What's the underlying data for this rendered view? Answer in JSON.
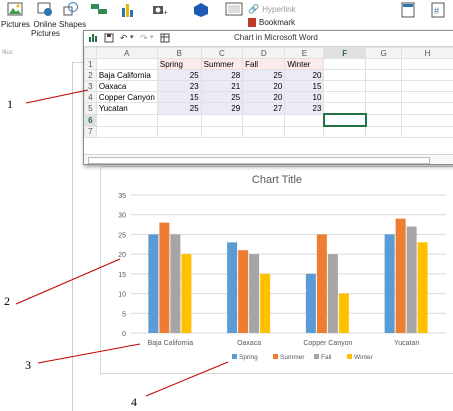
{
  "ribbon": {
    "buttons": [
      {
        "label": "Pictures",
        "icon": "pictures-icon"
      },
      {
        "label": "Online Pictures",
        "icon": "online-pictures-icon"
      },
      {
        "label": "Shapes",
        "icon": "shapes-icon"
      },
      {
        "label": "",
        "icon": "smartart-icon"
      },
      {
        "label": "",
        "icon": "chart-icon"
      },
      {
        "label": "",
        "icon": "screenshot-icon"
      },
      {
        "label": "",
        "icon": "addins-icon"
      },
      {
        "label": "",
        "icon": "online-video-icon"
      }
    ],
    "hyperlink_label": "Hyperlink",
    "bookmark_label": "Bookmark",
    "group_label": "Illus"
  },
  "sheet": {
    "title": "Chart in Microsoft Word",
    "columns": [
      "",
      "A",
      "B",
      "C",
      "D",
      "E",
      "F",
      "G",
      "H"
    ],
    "rows": [
      [
        "1",
        "",
        "Spring",
        "Summer",
        "Fall",
        "Winter",
        "",
        "",
        ""
      ],
      [
        "2",
        "Baja California",
        "25",
        "28",
        "25",
        "20",
        "",
        "",
        ""
      ],
      [
        "3",
        "Oaxaca",
        "23",
        "21",
        "20",
        "15",
        "",
        "",
        ""
      ],
      [
        "4",
        "Copper Canyon",
        "15",
        "25",
        "20",
        "10",
        "",
        "",
        ""
      ],
      [
        "5",
        "Yucatan",
        "25",
        "29",
        "27",
        "23",
        "",
        "",
        ""
      ],
      [
        "6",
        "",
        "",
        "",
        "",
        "",
        "",
        "",
        ""
      ],
      [
        "7",
        "",
        "",
        "",
        "",
        "",
        "",
        "",
        ""
      ]
    ]
  },
  "chart_data": {
    "type": "bar",
    "title": "Chart Title",
    "categories": [
      "Baja California",
      "Oaxaca",
      "Copper Canyon",
      "Yucatan"
    ],
    "series": [
      {
        "name": "Spring",
        "color": "#5b9bd5",
        "values": [
          25,
          23,
          15,
          25
        ]
      },
      {
        "name": "Summer",
        "color": "#ed7d31",
        "values": [
          28,
          21,
          25,
          29
        ]
      },
      {
        "name": "Fall",
        "color": "#a5a5a5",
        "values": [
          25,
          20,
          20,
          27
        ]
      },
      {
        "name": "Winter",
        "color": "#ffc000",
        "values": [
          20,
          15,
          10,
          23
        ]
      }
    ],
    "ylim": [
      0,
      35
    ],
    "yticks": [
      0,
      5,
      10,
      15,
      20,
      25,
      30,
      35
    ],
    "grid": true,
    "legend": "bottom"
  },
  "callouts": [
    {
      "label": "1"
    },
    {
      "label": "2"
    },
    {
      "label": "3"
    },
    {
      "label": "4"
    }
  ]
}
